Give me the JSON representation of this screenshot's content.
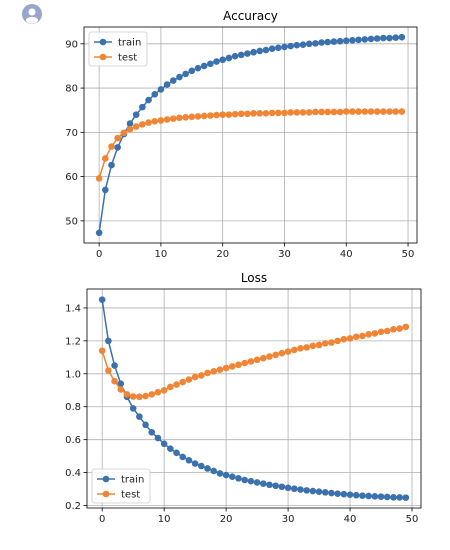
{
  "avatar": {
    "icon": "user-avatar-icon",
    "color": "#97a6cc"
  },
  "chart_data": [
    {
      "type": "line",
      "title": "Accuracy",
      "xlabel": "",
      "ylabel": "",
      "xlim": [
        -2.45,
        51.45
      ],
      "ylim": [
        45.0,
        93.8
      ],
      "xticks": [
        0,
        10,
        20,
        30,
        40,
        50
      ],
      "yticks": [
        50,
        60,
        70,
        80,
        90
      ],
      "grid": true,
      "legend": "top-left",
      "x": [
        0,
        1,
        2,
        3,
        4,
        5,
        6,
        7,
        8,
        9,
        10,
        11,
        12,
        13,
        14,
        15,
        16,
        17,
        18,
        19,
        20,
        21,
        22,
        23,
        24,
        25,
        26,
        27,
        28,
        29,
        30,
        31,
        32,
        33,
        34,
        35,
        36,
        37,
        38,
        39,
        40,
        41,
        42,
        43,
        44,
        45,
        46,
        47,
        48,
        49
      ],
      "series": [
        {
          "name": "train",
          "color": "#3b72ad",
          "values": [
            47.3,
            57.0,
            62.6,
            66.6,
            69.6,
            72.0,
            74.0,
            75.7,
            77.3,
            78.6,
            79.7,
            80.8,
            81.7,
            82.5,
            83.2,
            83.9,
            84.5,
            85.0,
            85.5,
            86.0,
            86.4,
            86.8,
            87.2,
            87.5,
            87.8,
            88.1,
            88.4,
            88.6,
            88.9,
            89.1,
            89.3,
            89.5,
            89.7,
            89.8,
            90.0,
            90.1,
            90.3,
            90.4,
            90.5,
            90.6,
            90.7,
            90.8,
            90.9,
            91.0,
            91.1,
            91.2,
            91.3,
            91.3,
            91.4,
            91.5
          ]
        },
        {
          "name": "test",
          "color": "#ef8535",
          "values": [
            59.6,
            64.1,
            66.8,
            68.7,
            69.9,
            70.7,
            71.3,
            71.8,
            72.2,
            72.5,
            72.7,
            72.9,
            73.1,
            73.3,
            73.4,
            73.5,
            73.6,
            73.7,
            73.8,
            73.9,
            74.0,
            74.0,
            74.1,
            74.2,
            74.2,
            74.3,
            74.3,
            74.3,
            74.4,
            74.4,
            74.4,
            74.5,
            74.5,
            74.5,
            74.5,
            74.6,
            74.6,
            74.6,
            74.6,
            74.6,
            74.7,
            74.7,
            74.7,
            74.7,
            74.7,
            74.7,
            74.7,
            74.7,
            74.7,
            74.7
          ]
        }
      ]
    },
    {
      "type": "line",
      "title": "Loss",
      "xlabel": "",
      "ylabel": "",
      "xlim": [
        -2.45,
        51.45
      ],
      "ylim": [
        0.185,
        1.515
      ],
      "xticks": [
        0,
        10,
        20,
        30,
        40,
        50
      ],
      "yticks": [
        0.2,
        0.4,
        0.6,
        0.8,
        1.0,
        1.2,
        1.4
      ],
      "ytick_labels": [
        "0.2",
        "0.4",
        "0.6",
        "0.8",
        "1.0",
        "1.2",
        "1.4"
      ],
      "grid": true,
      "legend": "bottom-left",
      "x": [
        0,
        1,
        2,
        3,
        4,
        5,
        6,
        7,
        8,
        9,
        10,
        11,
        12,
        13,
        14,
        15,
        16,
        17,
        18,
        19,
        20,
        21,
        22,
        23,
        24,
        25,
        26,
        27,
        28,
        29,
        30,
        31,
        32,
        33,
        34,
        35,
        36,
        37,
        38,
        39,
        40,
        41,
        42,
        43,
        44,
        45,
        46,
        47,
        48,
        49
      ],
      "series": [
        {
          "name": "train",
          "color": "#3b72ad",
          "values": [
            1.45,
            1.2,
            1.05,
            0.94,
            0.86,
            0.79,
            0.74,
            0.69,
            0.645,
            0.61,
            0.575,
            0.545,
            0.52,
            0.495,
            0.475,
            0.455,
            0.44,
            0.425,
            0.41,
            0.395,
            0.385,
            0.375,
            0.365,
            0.355,
            0.348,
            0.34,
            0.333,
            0.326,
            0.32,
            0.314,
            0.308,
            0.302,
            0.297,
            0.292,
            0.288,
            0.284,
            0.28,
            0.276,
            0.272,
            0.269,
            0.266,
            0.263,
            0.26,
            0.258,
            0.256,
            0.254,
            0.252,
            0.25,
            0.249,
            0.248
          ]
        },
        {
          "name": "test",
          "color": "#ef8535",
          "values": [
            1.14,
            1.02,
            0.955,
            0.905,
            0.875,
            0.862,
            0.86,
            0.865,
            0.875,
            0.888,
            0.9,
            0.92,
            0.935,
            0.95,
            0.965,
            0.98,
            0.99,
            1.005,
            1.015,
            1.025,
            1.035,
            1.045,
            1.055,
            1.065,
            1.075,
            1.085,
            1.095,
            1.105,
            1.115,
            1.125,
            1.135,
            1.145,
            1.155,
            1.16,
            1.17,
            1.175,
            1.185,
            1.19,
            1.2,
            1.21,
            1.215,
            1.225,
            1.23,
            1.24,
            1.245,
            1.255,
            1.26,
            1.27,
            1.275,
            1.285
          ]
        }
      ]
    }
  ]
}
